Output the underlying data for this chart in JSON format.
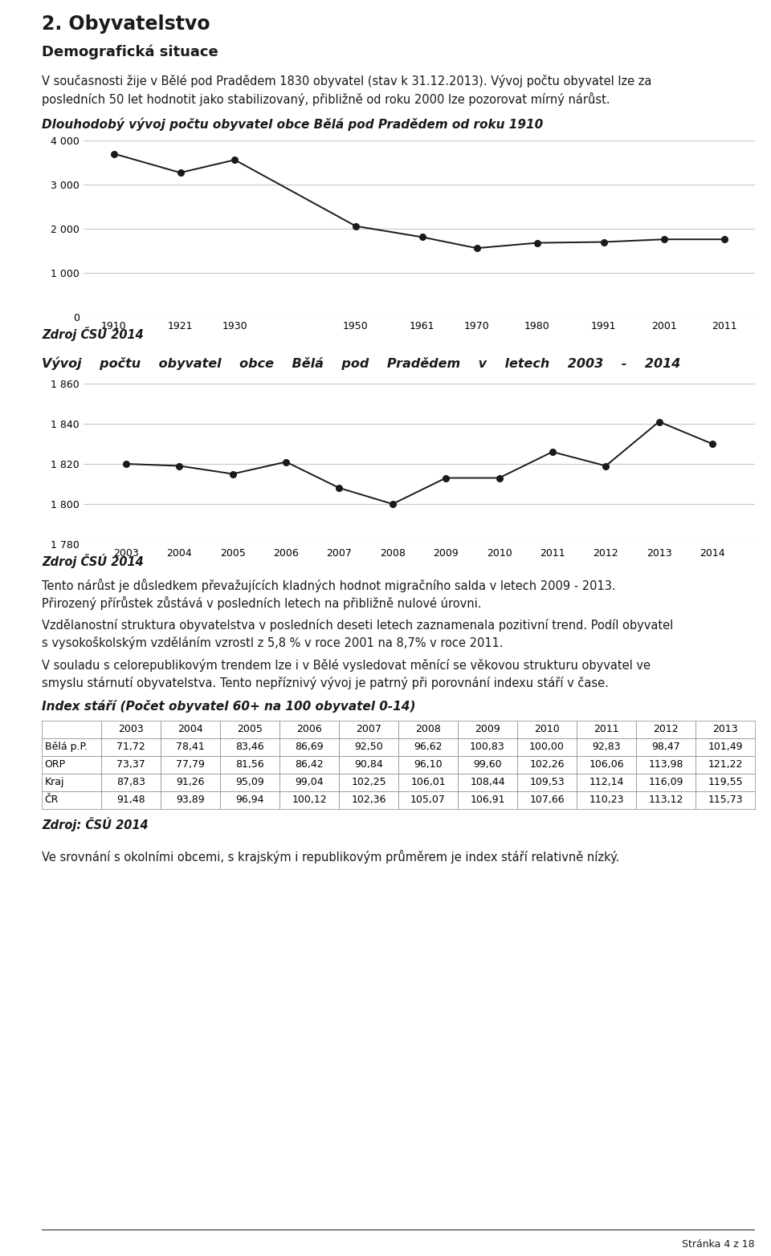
{
  "title_main": "2. Obyvatelstvo",
  "subtitle_demog": "Demografická situace",
  "para1_line1": "V současnosti žije v Bělé pod Pradědem 1830 obyvatel (stav k 31.12.2013). Vývoj počtu obyvatel lze za",
  "para1_line2": "posledních 50 let hodnotit jako stabilizovaný, přibližně od roku 2000 lze pozorovat mírný nárůst.",
  "chart1_title": "Dlouhodobý vývoj počtu obyvatel obce Bělá pod Pradědem od roku 1910",
  "chart1_x": [
    1910,
    1921,
    1930,
    1950,
    1961,
    1970,
    1980,
    1991,
    2001,
    2011
  ],
  "chart1_y": [
    3700,
    3270,
    3560,
    2060,
    1810,
    1560,
    1680,
    1700,
    1760,
    1760
  ],
  "chart1_ylim": [
    0,
    4000
  ],
  "chart1_yticks": [
    0,
    1000,
    2000,
    3000,
    4000
  ],
  "chart1_ytick_labels": [
    "0",
    "1 000",
    "2 000",
    "3 000",
    "4 000"
  ],
  "chart1_source": "Zdroj ČSÚ 2014",
  "chart2_title": "Vývoj    počtu    obyvatel    obce    Bělá    pod    Pradědem    v    letech    2003    -    2014",
  "chart2_years": [
    2003,
    2004,
    2005,
    2006,
    2007,
    2008,
    2009,
    2010,
    2011,
    2012,
    2013,
    2014
  ],
  "chart2_values": [
    1820,
    1819,
    1815,
    1821,
    1808,
    1800,
    1813,
    1813,
    1826,
    1819,
    1841,
    1830
  ],
  "chart2_ylim": [
    1780,
    1860
  ],
  "chart2_yticks": [
    1780,
    1800,
    1820,
    1840,
    1860
  ],
  "chart2_ytick_labels": [
    "1 780",
    "1 800",
    "1 820",
    "1 840",
    "1 860"
  ],
  "chart2_source": "Zdroj ČSÚ 2014",
  "para2_line1": "Tento nárůst je důsledkem převažujících kladných hodnot migračního salda v letech 2009 - 2013.",
  "para2_line2": "Přirozený přírůstek zůstává v posledních letech na přibližně nulové úrovni.",
  "para3_line1": "Vzdělanostní struktura obyvatelstva v posledních deseti letech zaznamenala pozitivní trend. Podíl obyvatel",
  "para3_line2": "s vysokoškolským vzděláním vzrostl z 5,8 % v roce 2001 na 8,7% v roce 2011.",
  "para4_line1": "V souladu s celorepublikovým trendem lze i v Bělé vysledovat měnící se věkovou strukturu obyvatel ve",
  "para4_line2": "smyslu stárnutí obyvatelstva. Tento nepříznivý vývoj je patrný při porovnání indexu stáří v čase.",
  "index_title": "Index stáří (Počet obyvatel 60+ na 100 obyvatel 0-14)",
  "table_col_header": [
    "",
    "2003",
    "2004",
    "2005",
    "2006",
    "2007",
    "2008",
    "2009",
    "2010",
    "2011",
    "2012",
    "2013"
  ],
  "table_rows": [
    [
      "Bělá p.P.",
      "71,72",
      "78,41",
      "83,46",
      "86,69",
      "92,50",
      "96,62",
      "100,83",
      "100,00",
      "92,83",
      "98,47",
      "101,49"
    ],
    [
      "ORP",
      "73,37",
      "77,79",
      "81,56",
      "86,42",
      "90,84",
      "96,10",
      "99,60",
      "102,26",
      "106,06",
      "113,98",
      "121,22"
    ],
    [
      "Kraj",
      "87,83",
      "91,26",
      "95,09",
      "99,04",
      "102,25",
      "106,01",
      "108,44",
      "109,53",
      "112,14",
      "116,09",
      "119,55"
    ],
    [
      "ČR",
      "91,48",
      "93,89",
      "96,94",
      "100,12",
      "102,36",
      "105,07",
      "106,91",
      "107,66",
      "110,23",
      "113,12",
      "115,73"
    ]
  ],
  "table_source": "Zdroj: ČSÚ 2014",
  "para5": "Ve srovnání s okolními obcemi, s krajským i republikovým průměrem je index stáří relativně nízký.",
  "footer": "Stránka 4 z 18",
  "line_color": "#1a1a1a",
  "marker_color": "#1a1a1a",
  "grid_color": "#c8c8c8",
  "bg_color": "#ffffff",
  "text_color": "#1a1a1a"
}
